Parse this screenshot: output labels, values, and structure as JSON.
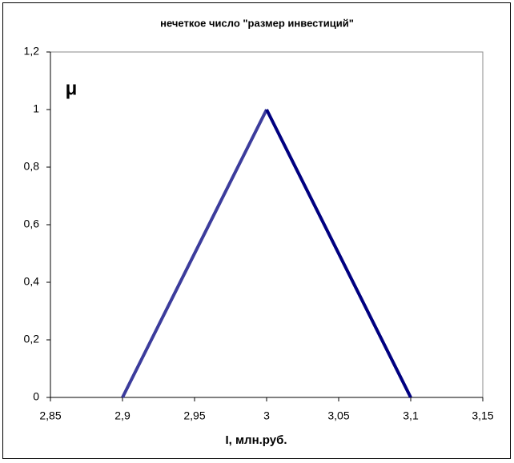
{
  "chart_data": {
    "type": "line",
    "title": "нечеткое число \"размер инвестиций\"",
    "x_label": "I,  млн.руб.",
    "y_label": "μ",
    "series": [
      {
        "color": "#3c3c9c",
        "x": [
          2.9,
          3
        ],
        "values": [
          0,
          1
        ]
      },
      {
        "color": "#000080",
        "x": [
          3,
          3.1
        ],
        "values": [
          1,
          0
        ]
      }
    ],
    "xlim": [
      2.85,
      3.15
    ],
    "xticks": [
      {
        "value": 2.85,
        "label": "2,85"
      },
      {
        "value": 2.9,
        "label": "2,9"
      },
      {
        "value": 2.95,
        "label": "2,95"
      },
      3,
      {
        "value": 3.05,
        "label": "3,05"
      },
      {
        "value": 3.1,
        "label": "3,1"
      },
      {
        "value": 3.15,
        "label": "3,15"
      }
    ],
    "ylim": [
      0,
      1.2
    ],
    "yticks": [
      0,
      {
        "value": 0.2,
        "label": "0,2"
      },
      {
        "value": 0.4,
        "label": "0,4"
      },
      {
        "value": 0.6,
        "label": "0,6"
      },
      {
        "value": 0.8,
        "label": "0,8"
      },
      1,
      {
        "value": 1.2,
        "label": "1,2"
      }
    ],
    "grid": false
  }
}
